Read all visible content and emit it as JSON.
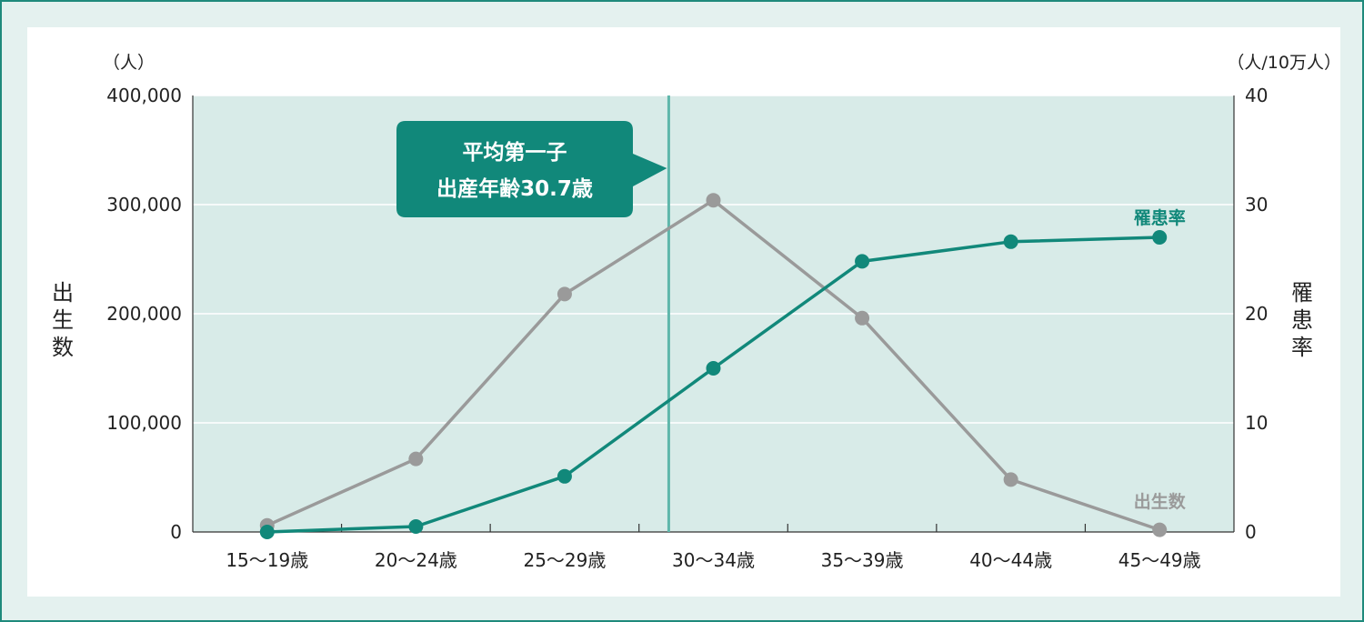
{
  "chart_data": {
    "type": "line",
    "categories": [
      "15〜19歳",
      "20〜24歳",
      "25〜29歳",
      "30〜34歳",
      "35〜39歳",
      "40〜44歳",
      "45〜49歳"
    ],
    "series": [
      {
        "name": "出生数",
        "axis": "left",
        "color": "#9a9a9a",
        "values": [
          6000,
          67000,
          218000,
          304000,
          196000,
          48000,
          2000
        ]
      },
      {
        "name": "罹患率",
        "axis": "right",
        "color": "#11887a",
        "values": [
          0.0,
          0.5,
          5.1,
          15.0,
          24.8,
          26.6,
          27.0
        ]
      }
    ],
    "left_axis": {
      "title": "出生数",
      "unit": "（人）",
      "ylim": [
        0,
        400000
      ],
      "ticks": [
        "0",
        "100,000",
        "200,000",
        "300,000",
        "400,000"
      ]
    },
    "right_axis": {
      "title": "罹患率",
      "unit": "（人/10万人）",
      "ylim": [
        0,
        40
      ],
      "ticks": [
        "0",
        "10",
        "20",
        "30",
        "40"
      ]
    },
    "marker": {
      "x_index": 2.7,
      "label_line1": "平均第一子",
      "label_line2": "出産年齢30.7歳"
    },
    "plot_background": "#d8ebe8",
    "grid": true
  }
}
